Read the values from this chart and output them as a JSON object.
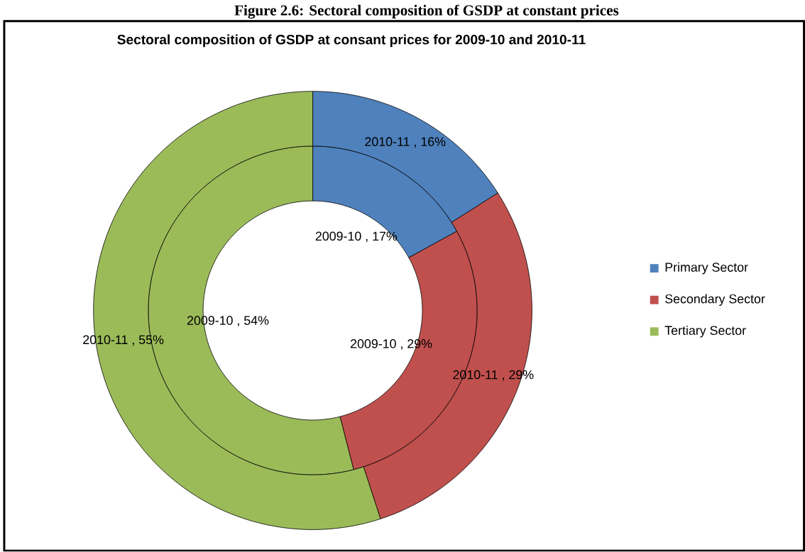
{
  "chart_data": {
    "type": "donut",
    "title": "Sectoral composition of GSDP at consant prices for 2009-10 and 2010-11",
    "annotations": [
      "Figure 2.6: Sectoral composition of GSDP at constant prices"
    ],
    "categories": [
      "Primary Sector",
      "Secondary Sector",
      "Tertiary Sector"
    ],
    "colors": [
      "#4f81bd",
      "#c0504d",
      "#9bbb59"
    ],
    "series": [
      {
        "values": [
          17,
          29,
          54
        ],
        "value_labels": [
          "2009-10 , 17%",
          "2009-10 , 29%",
          "2009-10 , 54%"
        ]
      },
      {
        "values": [
          16,
          29,
          55
        ],
        "value_labels": [
          "2010-11 , 16%",
          "2010-11 , 29%",
          "2010-11 , 55%"
        ]
      }
    ],
    "legend": "right"
  }
}
